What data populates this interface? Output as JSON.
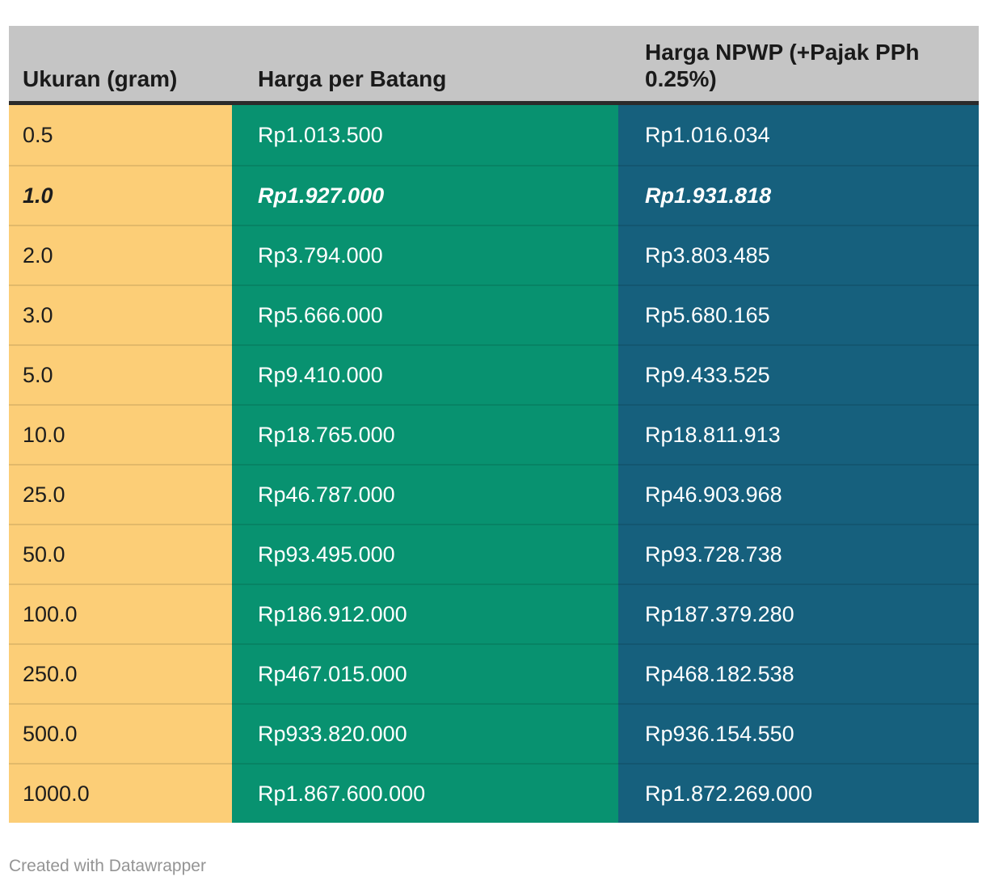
{
  "chart_data": {
    "type": "table",
    "columns": [
      "Ukuran (gram)",
      "Harga per Batang",
      "Harga NPWP (+Pajak PPh 0.25%)"
    ],
    "rows": [
      {
        "ukuran": "0.5",
        "harga_per_batang": "Rp1.013.500",
        "harga_npwp": "Rp1.016.034",
        "highlighted": false
      },
      {
        "ukuran": "1.0",
        "harga_per_batang": "Rp1.927.000",
        "harga_npwp": "Rp1.931.818",
        "highlighted": true
      },
      {
        "ukuran": "2.0",
        "harga_per_batang": "Rp3.794.000",
        "harga_npwp": "Rp3.803.485",
        "highlighted": false
      },
      {
        "ukuran": "3.0",
        "harga_per_batang": "Rp5.666.000",
        "harga_npwp": "Rp5.680.165",
        "highlighted": false
      },
      {
        "ukuran": "5.0",
        "harga_per_batang": "Rp9.410.000",
        "harga_npwp": "Rp9.433.525",
        "highlighted": false
      },
      {
        "ukuran": "10.0",
        "harga_per_batang": "Rp18.765.000",
        "harga_npwp": "Rp18.811.913",
        "highlighted": false
      },
      {
        "ukuran": "25.0",
        "harga_per_batang": "Rp46.787.000",
        "harga_npwp": "Rp46.903.968",
        "highlighted": false
      },
      {
        "ukuran": "50.0",
        "harga_per_batang": "Rp93.495.000",
        "harga_npwp": "Rp93.728.738",
        "highlighted": false
      },
      {
        "ukuran": "100.0",
        "harga_per_batang": "Rp186.912.000",
        "harga_npwp": "Rp187.379.280",
        "highlighted": false
      },
      {
        "ukuran": "250.0",
        "harga_per_batang": "Rp467.015.000",
        "harga_npwp": "Rp468.182.538",
        "highlighted": false
      },
      {
        "ukuran": "500.0",
        "harga_per_batang": "Rp933.820.000",
        "harga_npwp": "Rp936.154.550",
        "highlighted": false
      },
      {
        "ukuran": "1000.0",
        "harga_per_batang": "Rp1.867.600.000",
        "harga_npwp": "Rp1.872.269.000",
        "highlighted": false
      }
    ],
    "highlighted_row": "1.0",
    "layout_hints": {
      "header_position": "top",
      "grid": "row-separators",
      "column_colors": [
        "yellow",
        "green",
        "teal"
      ]
    }
  },
  "footer": {
    "credit_label": "Created with Datawrapper"
  },
  "colors": {
    "page_bg": "#ffffff",
    "header_bg": "#c5c5c5",
    "header_text": "#1a1a1a",
    "header_border": "#2b2b2b",
    "col1_bg": "#fcce77",
    "col1_text": "#1d1d1d",
    "col2_bg": "#089270",
    "col3_bg": "#16607d",
    "value_text": "#ffffff",
    "credit_text": "#949494"
  }
}
